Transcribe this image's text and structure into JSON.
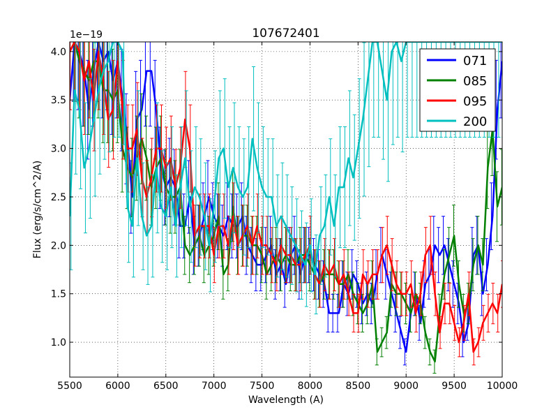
{
  "chart_data": {
    "type": "line",
    "title": "107672401",
    "xlabel": "Wavelength (A)",
    "ylabel": "Flux (erg/s/cm^2/A)",
    "offset_label": "1e−19",
    "xlim": [
      5500,
      10000
    ],
    "ylim": [
      0.64,
      4.1
    ],
    "xticks": [
      5500,
      6000,
      6500,
      7000,
      7500,
      8000,
      8500,
      9000,
      9500,
      10000
    ],
    "xtick_labels": [
      "5500",
      "6000",
      "6500",
      "7000",
      "7500",
      "8000",
      "8500",
      "9000",
      "9500",
      "10000"
    ],
    "yticks": [
      1.0,
      1.5,
      2.0,
      2.5,
      3.0,
      3.5,
      4.0
    ],
    "ytick_labels": [
      "1.0",
      "1.5",
      "2.0",
      "2.5",
      "3.0",
      "3.5",
      "4.0"
    ],
    "grid": true,
    "legend_position": "top-right",
    "series": [
      {
        "name": "071",
        "color": "#0000ff",
        "x": [
          5500,
          5550,
          5600,
          5650,
          5700,
          5750,
          5800,
          5850,
          5900,
          5950,
          6000,
          6050,
          6100,
          6150,
          6200,
          6250,
          6300,
          6350,
          6400,
          6450,
          6500,
          6550,
          6600,
          6650,
          6700,
          6750,
          6800,
          6850,
          6900,
          6950,
          7000,
          7050,
          7100,
          7150,
          7200,
          7250,
          7300,
          7350,
          7400,
          7450,
          7500,
          7550,
          7600,
          7650,
          7700,
          7750,
          7800,
          7850,
          7900,
          7950,
          8000,
          8050,
          8100,
          8150,
          8200,
          8250,
          8300,
          8350,
          8400,
          8450,
          8500,
          8550,
          8600,
          8650,
          8700,
          8750,
          8800,
          8850,
          8900,
          8950,
          9000,
          9050,
          9100,
          9150,
          9200,
          9250,
          9300,
          9350,
          9400,
          9450,
          9500,
          9550,
          9600,
          9650,
          9700,
          9750,
          9800,
          9850,
          9900,
          9950,
          10000
        ],
        "y": [
          3.5,
          4.1,
          4.0,
          3.8,
          3.4,
          3.8,
          4.1,
          3.9,
          4.0,
          3.7,
          3.9,
          3.5,
          3.1,
          2.5,
          3.3,
          3.4,
          3.8,
          3.8,
          3.4,
          2.8,
          2.6,
          2.7,
          2.6,
          2.2,
          2.2,
          2.5,
          2.0,
          2.1,
          2.3,
          2.5,
          2.3,
          2.2,
          2.1,
          2.3,
          2.2,
          2.2,
          2.3,
          2.0,
          1.9,
          1.8,
          1.8,
          1.9,
          2.0,
          1.7,
          1.8,
          1.6,
          1.9,
          2.0,
          1.7,
          1.9,
          1.9,
          1.8,
          1.7,
          1.6,
          1.3,
          1.3,
          1.3,
          1.6,
          1.5,
          1.7,
          1.6,
          1.4,
          1.5,
          1.4,
          1.7,
          1.9,
          1.7,
          1.5,
          1.3,
          1.1,
          0.9,
          1.3,
          1.5,
          1.2,
          1.6,
          1.7,
          2.0,
          1.9,
          2.0,
          1.8,
          1.6,
          1.4,
          1.0,
          1.2,
          1.9,
          2.0,
          1.5,
          1.8,
          2.3,
          3.4,
          3.9
        ]
      },
      {
        "name": "085",
        "color": "#008000",
        "x": [
          5500,
          5550,
          5600,
          5650,
          5700,
          5750,
          5800,
          5850,
          5900,
          5950,
          6000,
          6050,
          6100,
          6150,
          6200,
          6250,
          6300,
          6350,
          6400,
          6450,
          6500,
          6550,
          6600,
          6650,
          6700,
          6750,
          6800,
          6850,
          6900,
          6950,
          7000,
          7050,
          7100,
          7150,
          7200,
          7250,
          7300,
          7350,
          7400,
          7450,
          7500,
          7550,
          7600,
          7650,
          7700,
          7750,
          7800,
          7850,
          7900,
          7950,
          8000,
          8050,
          8100,
          8150,
          8200,
          8250,
          8300,
          8350,
          8400,
          8450,
          8500,
          8550,
          8600,
          8650,
          8700,
          8750,
          8800,
          8850,
          8900,
          8950,
          9000,
          9050,
          9100,
          9150,
          9200,
          9250,
          9300,
          9350,
          9400,
          9450,
          9500,
          9550,
          9600,
          9650,
          9700,
          9750,
          9800,
          9850,
          9900,
          9950,
          10000
        ],
        "y": [
          4.0,
          4.1,
          3.9,
          3.8,
          3.7,
          3.9,
          3.9,
          3.6,
          3.6,
          3.5,
          3.6,
          3.0,
          2.8,
          2.7,
          2.9,
          3.1,
          2.9,
          2.6,
          2.8,
          2.9,
          2.6,
          2.5,
          2.5,
          2.6,
          2.0,
          1.9,
          2.0,
          2.1,
          1.9,
          2.0,
          2.1,
          2.3,
          1.7,
          1.8,
          2.4,
          2.0,
          2.1,
          2.1,
          2.0,
          2.0,
          1.9,
          1.7,
          1.8,
          1.9,
          1.8,
          1.9,
          1.8,
          1.8,
          1.9,
          1.9,
          1.8,
          1.7,
          1.6,
          1.7,
          1.7,
          1.7,
          1.6,
          1.6,
          1.7,
          1.5,
          1.4,
          1.3,
          1.4,
          1.6,
          0.9,
          1.0,
          1.1,
          1.6,
          1.5,
          1.5,
          1.4,
          1.3,
          1.5,
          1.4,
          1.1,
          0.9,
          0.8,
          1.3,
          1.7,
          1.9,
          2.1,
          1.6,
          1.3,
          1.4,
          1.8,
          2.0,
          1.8,
          2.8,
          3.2,
          2.4,
          2.6
        ]
      },
      {
        "name": "095",
        "color": "#ff0000",
        "x": [
          5500,
          5550,
          5600,
          5650,
          5700,
          5750,
          5800,
          5850,
          5900,
          5950,
          6000,
          6050,
          6100,
          6150,
          6200,
          6250,
          6300,
          6350,
          6400,
          6450,
          6500,
          6550,
          6600,
          6650,
          6700,
          6750,
          6800,
          6850,
          6900,
          6950,
          7000,
          7050,
          7100,
          7150,
          7200,
          7250,
          7300,
          7350,
          7400,
          7450,
          7500,
          7550,
          7600,
          7650,
          7700,
          7750,
          7800,
          7850,
          7900,
          7950,
          8000,
          8050,
          8100,
          8150,
          8200,
          8250,
          8300,
          8350,
          8400,
          8450,
          8500,
          8550,
          8600,
          8650,
          8700,
          8750,
          8800,
          8850,
          8900,
          8950,
          9000,
          9050,
          9100,
          9150,
          9200,
          9250,
          9300,
          9350,
          9400,
          9450,
          9500,
          9550,
          9600,
          9650,
          9700,
          9750,
          9800,
          9850,
          9900,
          9950,
          10000
        ],
        "y": [
          4.0,
          4.1,
          4.0,
          3.7,
          3.9,
          3.5,
          4.0,
          3.7,
          3.3,
          3.4,
          3.9,
          3.4,
          3.0,
          3.0,
          3.2,
          2.7,
          2.5,
          2.7,
          3.0,
          3.0,
          2.8,
          2.9,
          2.6,
          2.8,
          3.3,
          3.0,
          2.1,
          2.2,
          2.2,
          2.2,
          1.9,
          2.2,
          2.2,
          2.0,
          2.3,
          2.0,
          2.1,
          2.2,
          2.0,
          2.2,
          2.0,
          2.0,
          1.9,
          1.8,
          2.0,
          1.9,
          1.9,
          1.8,
          1.8,
          1.9,
          2.0,
          1.7,
          1.6,
          1.8,
          1.7,
          1.8,
          1.6,
          1.7,
          1.5,
          1.3,
          1.3,
          1.7,
          1.6,
          1.7,
          1.7,
          1.9,
          2.0,
          1.8,
          1.6,
          1.5,
          1.5,
          1.6,
          1.3,
          1.5,
          1.9,
          2.0,
          1.5,
          1.1,
          1.4,
          1.4,
          1.2,
          1.0,
          1.2,
          1.5,
          0.9,
          1.0,
          1.2,
          1.3,
          1.4,
          1.3,
          1.6
        ]
      },
      {
        "name": "200",
        "color": "#00bfbf",
        "x": [
          5500,
          5550,
          5600,
          5650,
          5700,
          5750,
          5800,
          5850,
          5900,
          5950,
          6000,
          6050,
          6100,
          6150,
          6200,
          6250,
          6300,
          6350,
          6400,
          6450,
          6500,
          6550,
          6600,
          6650,
          6700,
          6750,
          6800,
          6850,
          6900,
          6950,
          7000,
          7050,
          7100,
          7150,
          7200,
          7250,
          7300,
          7350,
          7400,
          7450,
          7500,
          7550,
          7600,
          7650,
          7700,
          7750,
          7800,
          7850,
          7900,
          7950,
          8000,
          8050,
          8100,
          8150,
          8200,
          8250,
          8300,
          8350,
          8400,
          8450,
          8500,
          8550,
          8600,
          8650,
          8700,
          8750,
          8800,
          8850,
          8900,
          8950,
          9000,
          9050,
          9100,
          9150,
          9200,
          9250,
          9300,
          9350,
          9400,
          9450,
          9500,
          9550,
          9600,
          9650,
          9700,
          9750,
          9800,
          9850,
          9900,
          9950,
          10000
        ],
        "y": [
          2.3,
          3.6,
          3.4,
          2.8,
          3.0,
          3.3,
          3.6,
          3.8,
          3.9,
          4.1,
          4.1,
          4.0,
          2.4,
          2.2,
          2.9,
          2.3,
          2.1,
          2.2,
          2.8,
          2.4,
          2.3,
          2.6,
          2.2,
          2.6,
          2.9,
          2.4,
          2.6,
          2.5,
          2.3,
          2.0,
          2.4,
          2.9,
          3.0,
          2.6,
          2.8,
          2.6,
          2.5,
          2.6,
          3.1,
          2.8,
          2.6,
          2.5,
          2.5,
          2.2,
          2.3,
          2.2,
          2.1,
          2.0,
          1.9,
          1.8,
          2.0,
          1.7,
          2.1,
          2.2,
          2.5,
          2.2,
          2.6,
          2.6,
          2.9,
          2.7,
          3.0,
          3.3,
          3.7,
          4.1,
          4.1,
          3.8,
          3.5,
          4.0,
          4.1,
          3.9,
          4.1,
          4.1,
          4.1,
          4.1,
          4.1,
          4.1,
          4.1,
          4.1,
          4.1,
          4.1,
          4.1,
          4.1,
          4.1,
          4.1,
          4.1,
          4.1,
          4.1,
          4.1,
          4.1,
          4.1,
          4.1
        ]
      }
    ]
  }
}
